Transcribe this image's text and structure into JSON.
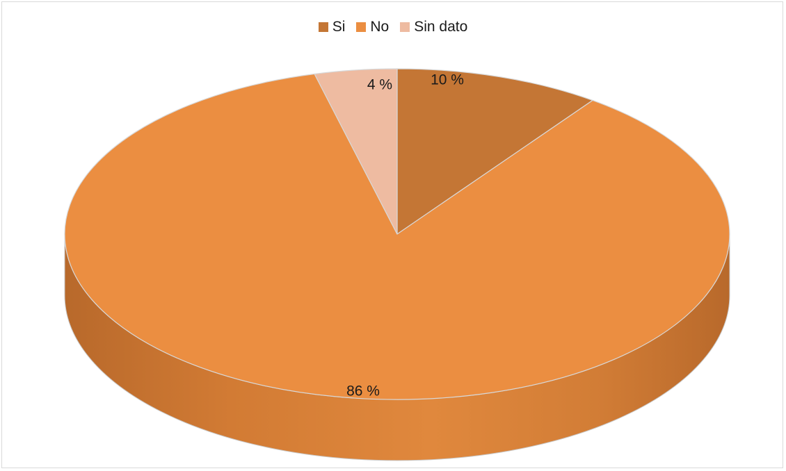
{
  "chart_data": {
    "type": "pie",
    "categories": [
      "Si",
      "No",
      "Sin dato"
    ],
    "values": [
      10,
      86,
      4
    ],
    "data_labels": [
      "10 %",
      "86 %",
      "4 %"
    ],
    "colors": [
      "#c47635",
      "#eb8e41",
      "#eebba1"
    ],
    "legend": {
      "placement": "top",
      "entries": [
        "Si",
        "No",
        "Sin dato"
      ]
    },
    "style": "3d"
  }
}
